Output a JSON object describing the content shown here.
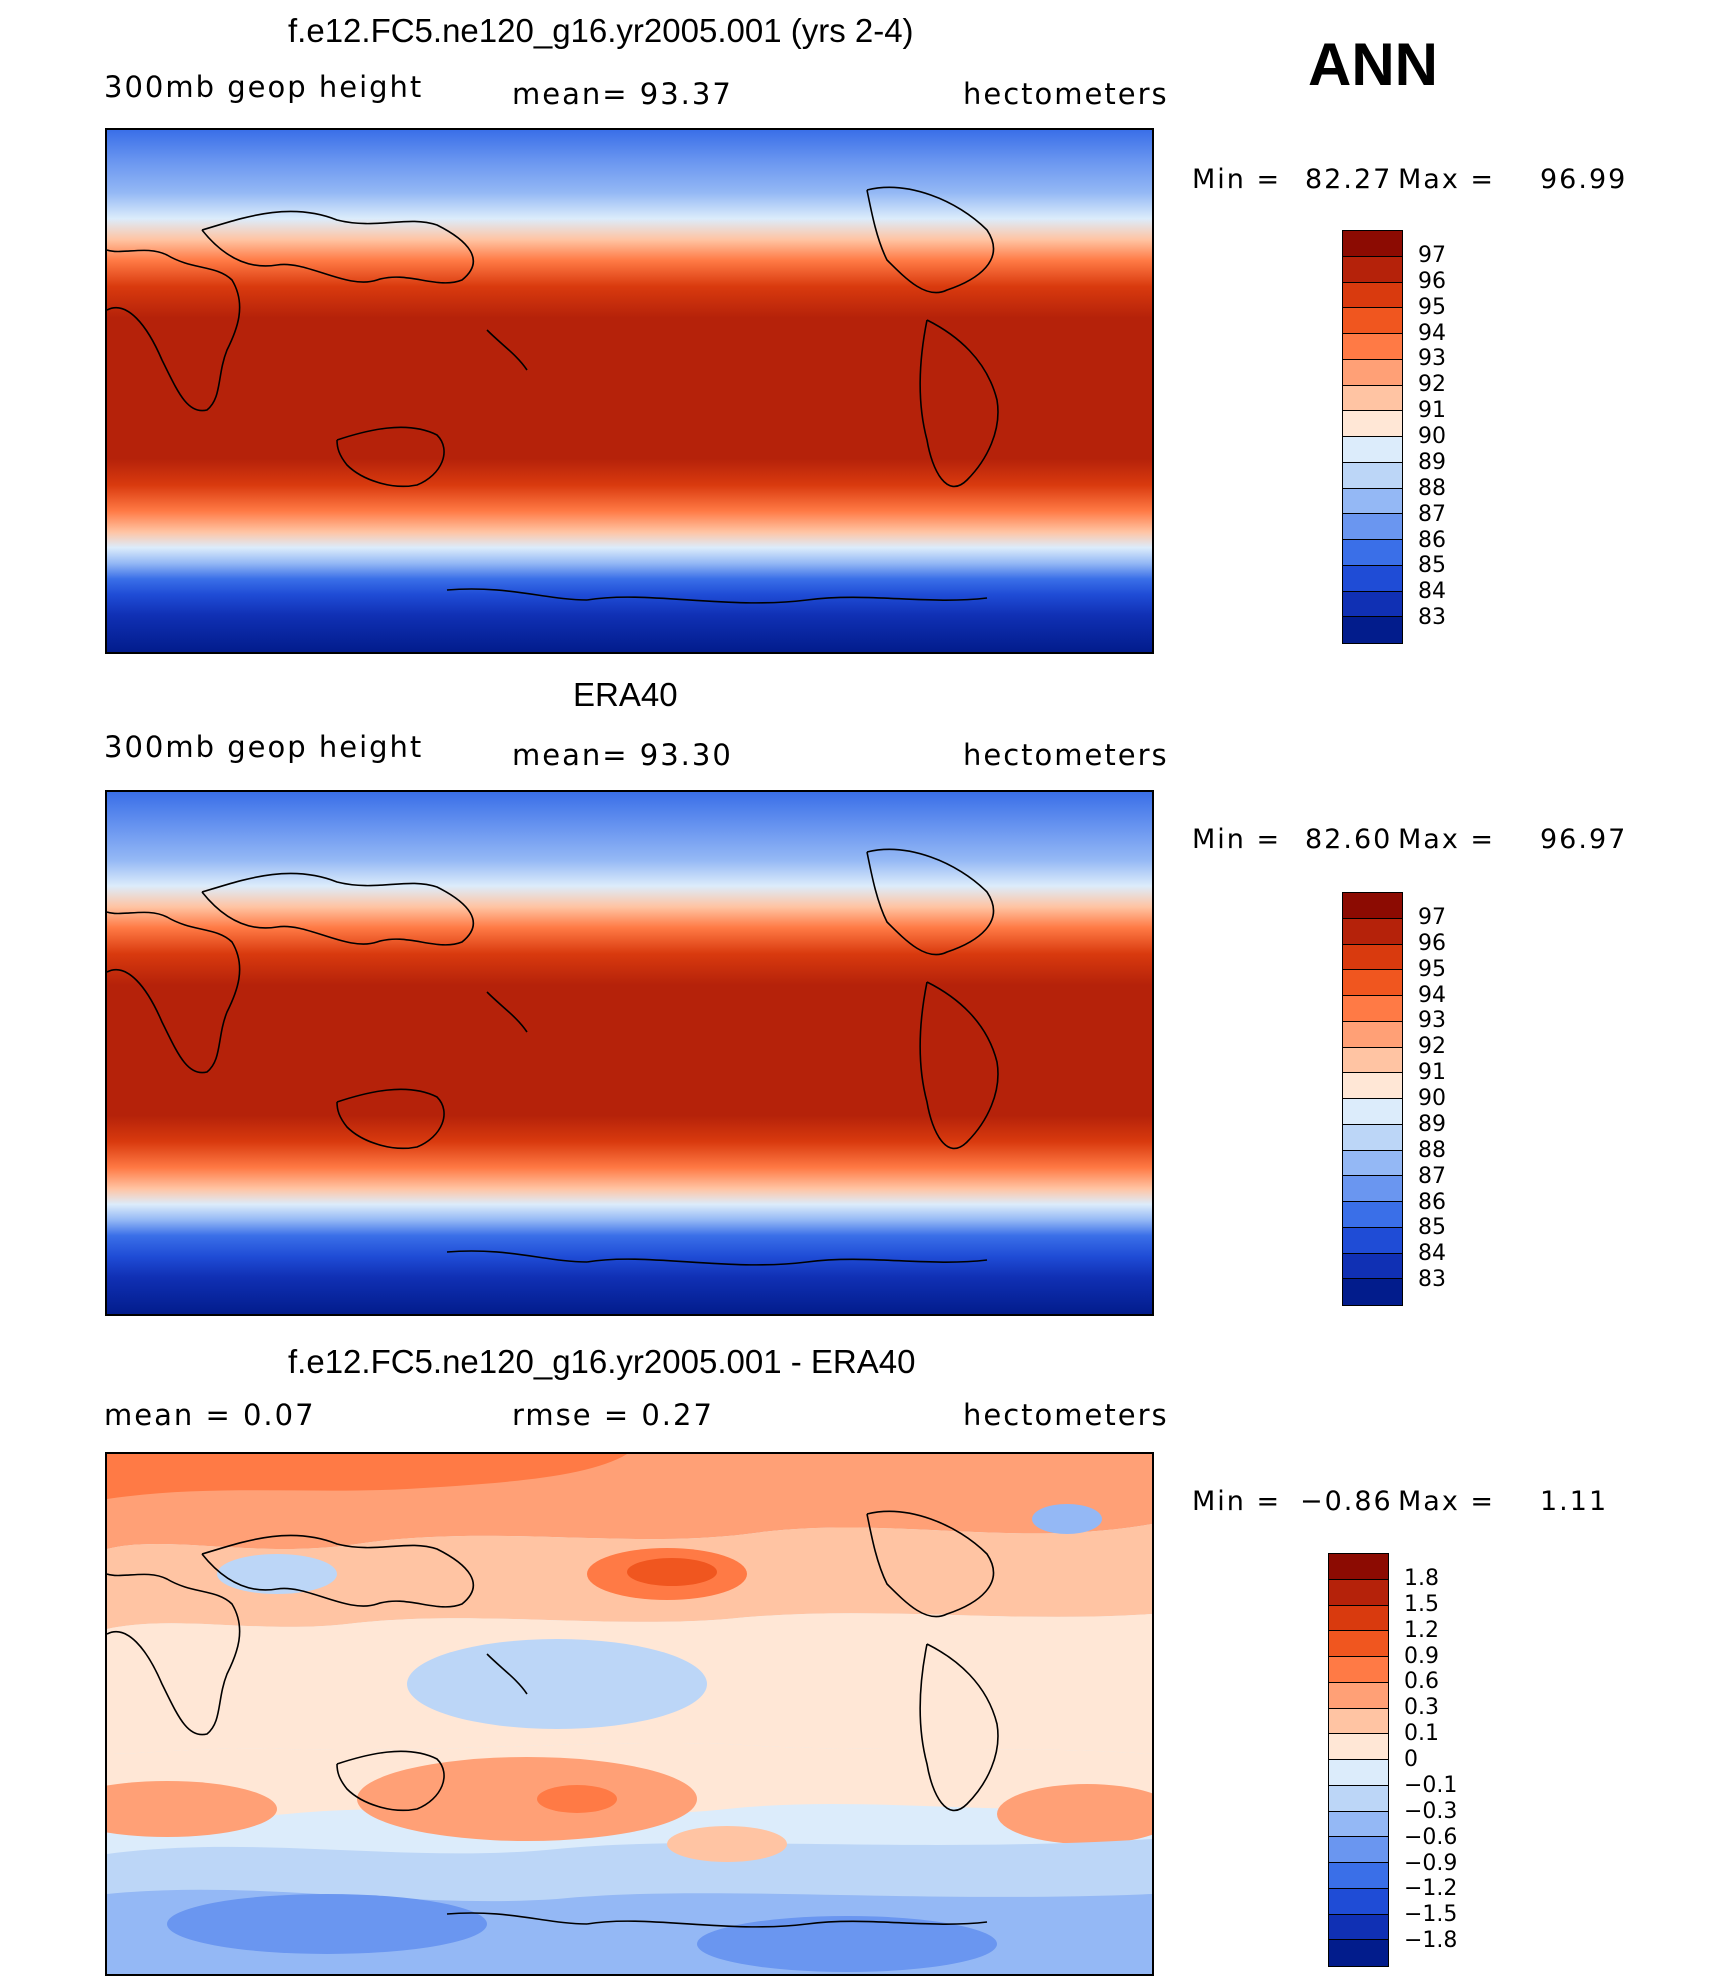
{
  "season": "ANN",
  "panels": [
    {
      "title": "f.e12.FC5.ne120_g16.yr2005.001 (yrs 2-4)",
      "left_label": "300mb  geop  height",
      "mid_label": "mean=   93.37",
      "right_label": "hectometers",
      "min_label": "Min  =",
      "min_value": "82.27",
      "max_label": "Max  =",
      "max_value": "96.99",
      "legend_levels": [
        "97",
        "96",
        "95",
        "94",
        "93",
        "92",
        "91",
        "90",
        "89",
        "88",
        "87",
        "86",
        "85",
        "84",
        "83"
      ],
      "legend_colors": [
        "#8c0b02",
        "#b5220a",
        "#d93a0e",
        "#f0561f",
        "#ff7a45",
        "#ffa076",
        "#ffc4a3",
        "#ffe7d6",
        "#dcecfb",
        "#bcd6f7",
        "#94b8f5",
        "#6a96f0",
        "#3a6fe8",
        "#1f4cd6",
        "#1030b4",
        "#021c8c"
      ],
      "chart_data": {
        "type": "heatmap",
        "units": "hectometers",
        "mean": 93.37,
        "min": 82.27,
        "max": 96.99
      }
    },
    {
      "title": "ERA40",
      "left_label": "300mb  geop  height",
      "mid_label": "mean=   93.30",
      "right_label": "hectometers",
      "min_label": "Min  =",
      "min_value": "82.60",
      "max_label": "Max  =",
      "max_value": "96.97",
      "legend_levels": [
        "97",
        "96",
        "95",
        "94",
        "93",
        "92",
        "91",
        "90",
        "89",
        "88",
        "87",
        "86",
        "85",
        "84",
        "83"
      ],
      "legend_colors": [
        "#8c0b02",
        "#b5220a",
        "#d93a0e",
        "#f0561f",
        "#ff7a45",
        "#ffa076",
        "#ffc4a3",
        "#ffe7d6",
        "#dcecfb",
        "#bcd6f7",
        "#94b8f5",
        "#6a96f0",
        "#3a6fe8",
        "#1f4cd6",
        "#1030b4",
        "#021c8c"
      ],
      "chart_data": {
        "type": "heatmap",
        "units": "hectometers",
        "mean": 93.3,
        "min": 82.6,
        "max": 96.97
      }
    },
    {
      "title": "f.e12.FC5.ne120_g16.yr2005.001 - ERA40",
      "left_label": "mean  =     0.07",
      "mid_label": "rmse  =     0.27",
      "right_label": "hectometers",
      "min_label": "Min  =",
      "min_value": "−0.86",
      "max_label": "Max  =",
      "max_value": "1.11",
      "legend_levels": [
        "1.8",
        "1.5",
        "1.2",
        "0.9",
        "0.6",
        "0.3",
        "0.1",
        "0",
        "−0.1",
        "−0.3",
        "−0.6",
        "−0.9",
        "−1.2",
        "−1.5",
        "−1.8"
      ],
      "legend_colors": [
        "#8c0b02",
        "#b5220a",
        "#d93a0e",
        "#f0561f",
        "#ff7a45",
        "#ffa076",
        "#ffc4a3",
        "#ffe7d6",
        "#dcecfb",
        "#bcd6f7",
        "#94b8f5",
        "#6a96f0",
        "#3a6fe8",
        "#1f4cd6",
        "#1030b4",
        "#021c8c"
      ],
      "chart_data": {
        "type": "heatmap",
        "units": "hectometers",
        "mean": 0.07,
        "rmse": 0.27,
        "min": -0.86,
        "max": 1.11
      }
    }
  ]
}
